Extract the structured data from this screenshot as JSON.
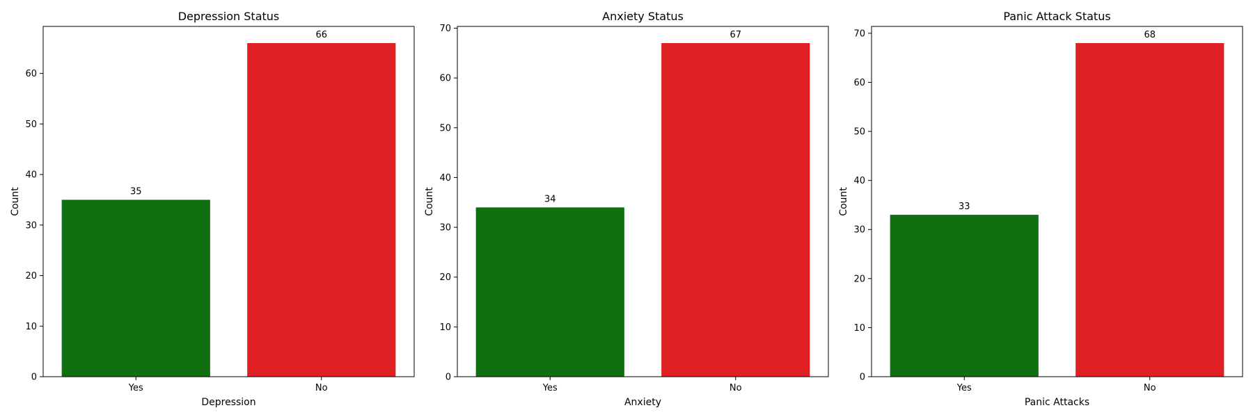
{
  "chart_data": [
    {
      "type": "bar",
      "title": "Depression Status",
      "xlabel": "Depression",
      "ylabel": "Count",
      "categories": [
        "Yes",
        "No"
      ],
      "values": [
        35,
        66
      ],
      "colors": [
        "#107010",
        "#e01f22"
      ],
      "yticks": [
        0,
        10,
        20,
        30,
        40,
        50,
        60
      ],
      "ylim": [
        0,
        69.3
      ],
      "grid": false
    },
    {
      "type": "bar",
      "title": "Anxiety Status",
      "xlabel": "Anxiety",
      "ylabel": "Count",
      "categories": [
        "Yes",
        "No"
      ],
      "values": [
        34,
        67
      ],
      "colors": [
        "#107010",
        "#e01f22"
      ],
      "yticks": [
        0,
        10,
        20,
        30,
        40,
        50,
        60,
        70
      ],
      "ylim": [
        0,
        70.35
      ],
      "grid": false
    },
    {
      "type": "bar",
      "title": "Panic Attack Status",
      "xlabel": "Panic Attacks",
      "ylabel": "Count",
      "categories": [
        "Yes",
        "No"
      ],
      "values": [
        33,
        68
      ],
      "colors": [
        "#107010",
        "#e01f22"
      ],
      "yticks": [
        0,
        10,
        20,
        30,
        40,
        50,
        60,
        70
      ],
      "ylim": [
        0,
        71.4
      ],
      "grid": false
    }
  ]
}
